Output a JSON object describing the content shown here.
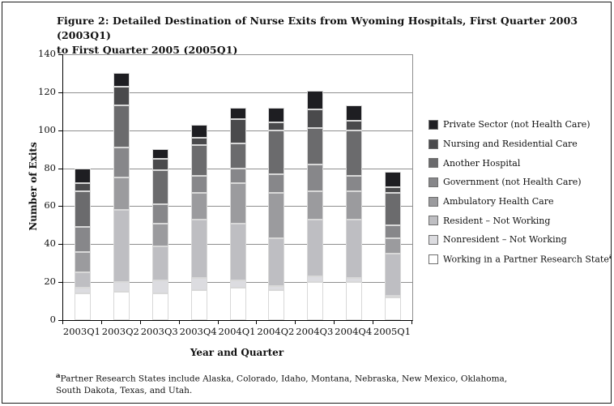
{
  "figure": {
    "footnote_sup": "a",
    "footnote_lines": [
      "Partner Research States include Alaska, Colorado, Idaho, Montana, Nebraska, New Mexico, Oklahoma,",
      "South Dakota, Texas, and Utah."
    ]
  },
  "chart_data": {
    "type": "bar",
    "stacked": true,
    "title": "Figure 2: Detailed Destination of Nurse Exits from Wyoming Hospitals, First Quarter 2003 (2003Q1) to First Quarter 2005 (2005Q1)",
    "title_lines": [
      "Figure 2: Detailed Destination of Nurse Exits from Wyoming Hospitals, First Quarter 2003 (2003Q1)",
      "to First Quarter 2005 (2005Q1)"
    ],
    "xlabel": "Year and Quarter",
    "ylabel": "Number of Exits",
    "ylim": [
      0,
      140
    ],
    "yticks": [
      0,
      20,
      40,
      60,
      80,
      100,
      120,
      140
    ],
    "grid": true,
    "legend_position": "right",
    "categories": [
      "2003Q1",
      "2003Q2",
      "2003Q3",
      "2003Q4",
      "2004Q1",
      "2004Q2",
      "2004Q3",
      "2004Q4",
      "2005Q1"
    ],
    "stack_order": "bottom-to-top",
    "stack_totals": [
      80,
      130,
      90,
      103,
      112,
      112,
      121,
      113,
      78
    ],
    "series": [
      {
        "name": "Working in a Partner Research State",
        "superscript": "a",
        "color": "#ffffff",
        "values": [
          14,
          15,
          14,
          16,
          17,
          16,
          20,
          20,
          12
        ]
      },
      {
        "name": "Nonresident – Not Working",
        "color": "#dcdce0",
        "values": [
          3,
          5,
          7,
          6,
          4,
          2,
          3,
          2,
          1
        ]
      },
      {
        "name": "Resident – Not Working",
        "color": "#bebec2",
        "values": [
          8,
          38,
          18,
          31,
          30,
          25,
          30,
          31,
          22
        ]
      },
      {
        "name": "Ambulatory Health Care",
        "color": "#9b9b9e",
        "values": [
          11,
          17,
          12,
          14,
          21,
          24,
          15,
          15,
          8
        ]
      },
      {
        "name": "Government (not Health Care)",
        "color": "#87878a",
        "values": [
          13,
          16,
          10,
          9,
          8,
          10,
          14,
          8,
          7
        ]
      },
      {
        "name": "Another Hospital",
        "color": "#6b6b6d",
        "values": [
          19,
          22,
          18,
          16,
          13,
          23,
          19,
          24,
          17
        ]
      },
      {
        "name": "Nursing and Residential Care",
        "color": "#4a4a4c",
        "values": [
          4,
          10,
          6,
          4,
          13,
          4,
          10,
          5,
          3
        ]
      },
      {
        "name": "Private Sector (not Health Care)",
        "color": "#1e1e22",
        "values": [
          8,
          7,
          5,
          7,
          6,
          8,
          10,
          8,
          8
        ]
      }
    ]
  }
}
